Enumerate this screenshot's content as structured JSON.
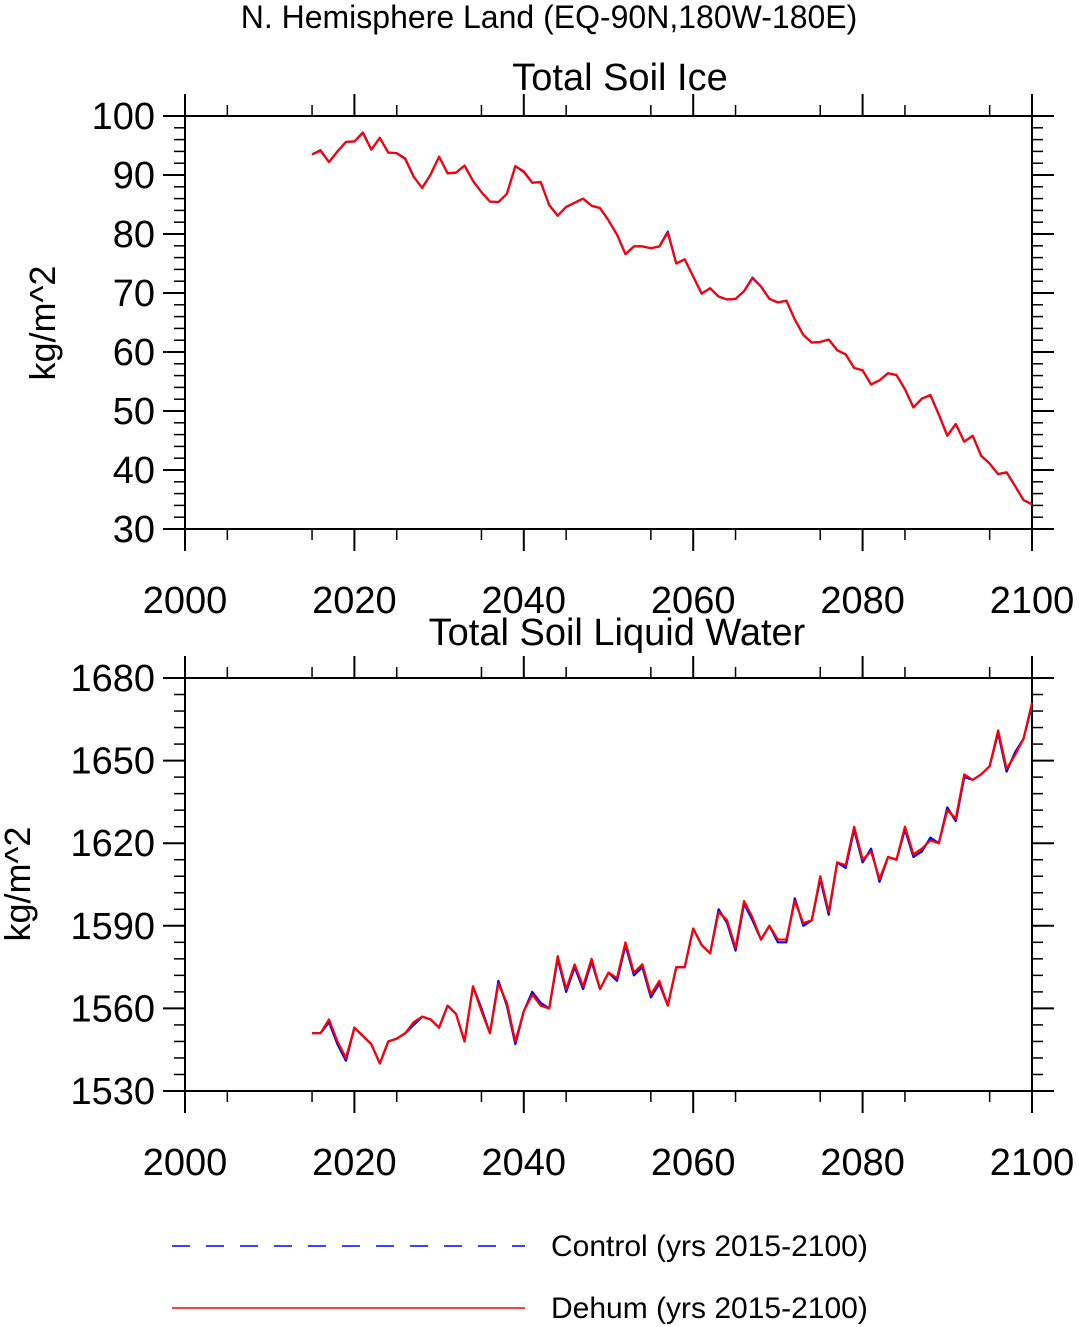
{
  "figure": {
    "title": "N. Hemisphere Land (EQ-90N,180W-180E)",
    "legend": [
      {
        "label": "Control (yrs 2015-2100)",
        "color": "#0000ff",
        "dash": "dashed"
      },
      {
        "label": "Dehum (yrs 2015-2100)",
        "color": "#ff0000",
        "dash": "solid"
      }
    ]
  },
  "chart_data": [
    {
      "type": "line",
      "title": "Total Soil Ice",
      "xlabel": "",
      "ylabel": "kg/m^2",
      "xlim": [
        2000,
        2100
      ],
      "ylim": [
        30,
        100
      ],
      "xticks": [
        2000,
        2020,
        2040,
        2060,
        2080,
        2100
      ],
      "yticks": [
        30,
        40,
        50,
        60,
        70,
        80,
        90,
        100
      ],
      "x_start": 2015,
      "series": [
        {
          "name": "Control (yrs 2015-2100)",
          "color": "#0000ff",
          "values": [
            93.5,
            94.2,
            92.2,
            94.0,
            95.6,
            95.7,
            97.2,
            94.3,
            96.3,
            93.8,
            93.7,
            92.8,
            89.7,
            87.8,
            90.1,
            93.1,
            90.3,
            90.4,
            91.6,
            89.0,
            87.1,
            85.5,
            85.4,
            86.8,
            91.5,
            90.6,
            88.7,
            88.8,
            84.9,
            83.1,
            84.6,
            85.3,
            86.0,
            84.8,
            84.4,
            82.3,
            79.9,
            76.6,
            77.9,
            77.9,
            77.6,
            77.9,
            80.4,
            75.0,
            75.7,
            72.8,
            69.9,
            70.8,
            69.4,
            68.9,
            69.0,
            70.3,
            72.6,
            71.1,
            69.0,
            68.4,
            68.7,
            65.5,
            62.9,
            61.6,
            61.7,
            62.1,
            60.3,
            59.6,
            57.3,
            56.9,
            54.5,
            55.2,
            56.4,
            56.1,
            53.7,
            50.6,
            52.1,
            52.7,
            49.4,
            45.8,
            47.8,
            44.8,
            45.8,
            42.4,
            41.1,
            39.3,
            39.6,
            37.3,
            34.9,
            34.2
          ]
        },
        {
          "name": "Dehum (yrs 2015-2100)",
          "color": "#ff0000",
          "values": [
            93.5,
            94.1,
            92.2,
            94.0,
            95.6,
            95.7,
            97.1,
            94.3,
            96.3,
            93.8,
            93.7,
            92.7,
            89.7,
            87.8,
            90.1,
            93.1,
            90.3,
            90.4,
            91.6,
            89.0,
            87.1,
            85.5,
            85.4,
            86.8,
            91.5,
            90.5,
            88.7,
            88.8,
            84.9,
            83.1,
            84.6,
            85.3,
            86.0,
            84.8,
            84.4,
            82.3,
            79.9,
            76.6,
            77.9,
            77.9,
            77.6,
            77.9,
            80.2,
            75.0,
            75.7,
            72.8,
            69.9,
            70.8,
            69.4,
            68.9,
            69.0,
            70.3,
            72.5,
            71.1,
            69.0,
            68.4,
            68.7,
            65.5,
            62.9,
            61.6,
            61.7,
            62.1,
            60.3,
            59.6,
            57.3,
            56.9,
            54.5,
            55.2,
            56.4,
            56.1,
            53.7,
            50.6,
            52.1,
            52.7,
            49.4,
            45.8,
            47.8,
            44.8,
            45.8,
            42.4,
            41.1,
            39.3,
            39.6,
            37.3,
            34.9,
            34.2
          ]
        }
      ]
    },
    {
      "type": "line",
      "title": "Total Soil Liquid Water",
      "xlabel": "",
      "ylabel": "kg/m^2",
      "xlim": [
        2000,
        2100
      ],
      "ylim": [
        1530,
        1680
      ],
      "xticks": [
        2000,
        2020,
        2040,
        2060,
        2080,
        2100
      ],
      "yticks": [
        1530,
        1560,
        1590,
        1620,
        1650,
        1680
      ],
      "x_start": 2015,
      "series": [
        {
          "name": "Control (yrs 2015-2100)",
          "color": "#0000ff",
          "values": [
            1551,
            1551,
            1555,
            1547,
            1541,
            1553,
            1550,
            1547,
            1540,
            1548,
            1549,
            1551,
            1554,
            1557,
            1556,
            1553,
            1561,
            1558,
            1548,
            1568,
            1560,
            1551,
            1570,
            1561,
            1547,
            1559,
            1566,
            1562,
            1560,
            1578,
            1566,
            1575,
            1567,
            1577,
            1567,
            1573,
            1570,
            1583,
            1572,
            1575,
            1564,
            1569,
            1561,
            1575,
            1575,
            1589,
            1583,
            1580,
            1596,
            1591,
            1581,
            1598,
            1592,
            1585,
            1590,
            1584,
            1584,
            1600,
            1590,
            1592,
            1607,
            1594,
            1613,
            1611,
            1625,
            1613,
            1618,
            1606,
            1615,
            1614,
            1625,
            1615,
            1617,
            1622,
            1620,
            1633,
            1628,
            1644,
            1643,
            1645,
            1648,
            1660,
            1646,
            1653,
            1658,
            1670
          ]
        },
        {
          "name": "Dehum (yrs 2015-2100)",
          "color": "#ff0000",
          "values": [
            1551,
            1551,
            1556,
            1548,
            1542,
            1553,
            1550,
            1547,
            1540,
            1548,
            1549,
            1551,
            1555,
            1557,
            1556,
            1553,
            1561,
            1558,
            1548,
            1568,
            1559,
            1551,
            1569,
            1562,
            1548,
            1559,
            1565,
            1561,
            1560,
            1579,
            1567,
            1576,
            1568,
            1578,
            1567,
            1573,
            1571,
            1584,
            1573,
            1576,
            1565,
            1570,
            1561,
            1575,
            1575,
            1589,
            1583,
            1580,
            1595,
            1592,
            1582,
            1599,
            1593,
            1585,
            1590,
            1585,
            1585,
            1599,
            1591,
            1592,
            1608,
            1595,
            1613,
            1612,
            1626,
            1614,
            1617,
            1607,
            1615,
            1614,
            1626,
            1616,
            1618,
            1621,
            1620,
            1632,
            1629,
            1645,
            1643,
            1645,
            1648,
            1661,
            1647,
            1652,
            1658,
            1671
          ]
        }
      ]
    }
  ]
}
